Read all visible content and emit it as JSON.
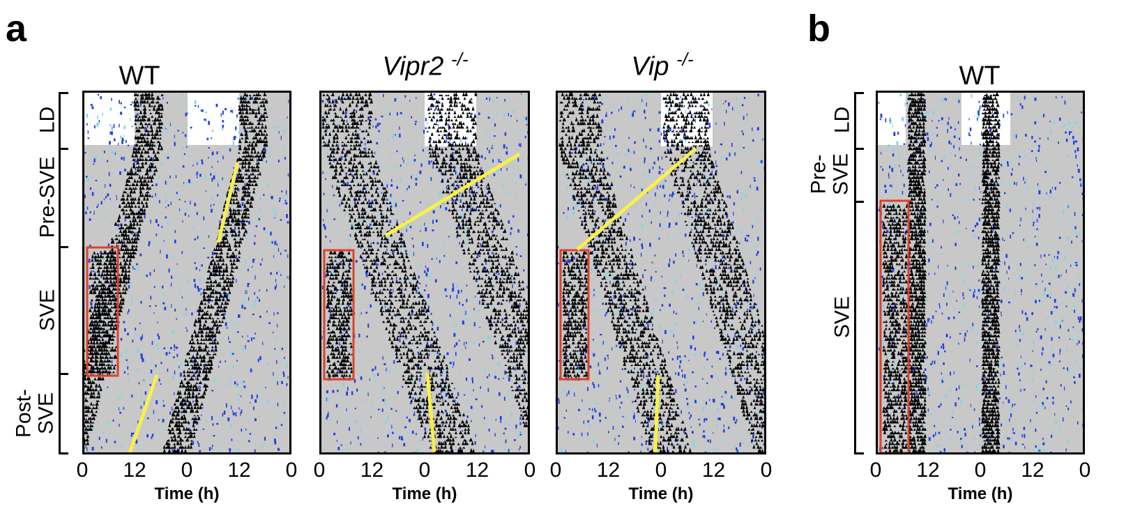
{
  "panels": [
    {
      "letter": "a"
    },
    {
      "letter": "b"
    }
  ],
  "plots": [
    {
      "title_main": "WT",
      "title_sup": "",
      "italic": false,
      "ticks": [
        "0",
        "12",
        "0",
        "12",
        "0"
      ],
      "xlabel": "Time (h)"
    },
    {
      "title_main": "Vipr2",
      "title_sup": "-/-",
      "italic": true,
      "ticks": [
        "0",
        "12",
        "0",
        "12",
        "0"
      ],
      "xlabel": "Time (h)"
    },
    {
      "title_main": "Vip",
      "title_sup": "-/-",
      "italic": true,
      "ticks": [
        "0",
        "12",
        "0",
        "12",
        "0"
      ],
      "xlabel": "Time (h)"
    },
    {
      "title_main": "WT",
      "title_sup": "",
      "italic": false,
      "ticks": [
        "0",
        "12",
        "0",
        "12",
        "0"
      ],
      "xlabel": "Time (h)"
    }
  ],
  "phases_a": [
    {
      "label": "LD"
    },
    {
      "label": "Pre-SVE"
    },
    {
      "label": "SVE"
    },
    {
      "label_line1": "Post-",
      "label_line2": "SVE"
    }
  ],
  "phases_b": [
    {
      "label": "LD"
    },
    {
      "label_line1": "Pre-",
      "label_line2": "SVE"
    },
    {
      "label": "SVE"
    }
  ],
  "colors": {
    "background_gray": "#c8c8c8",
    "activity": "#000000",
    "secondary_activity": "#2040e0",
    "highlight_box": "#e0402a",
    "trend_line": "#f8f04a"
  }
}
